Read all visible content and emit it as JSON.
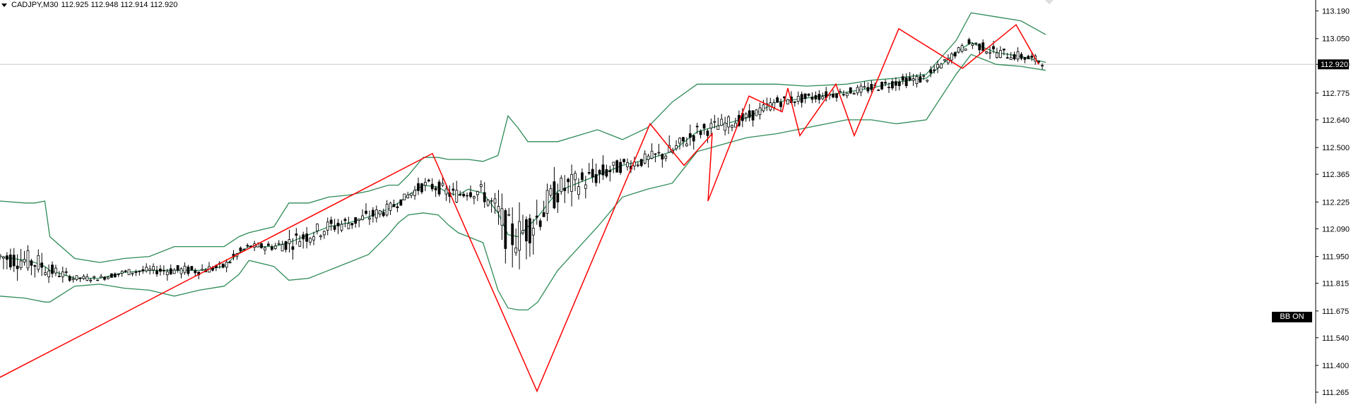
{
  "header": {
    "symbol_tf": "CADJPY,M30",
    "ohlc": "112.925 112.948 112.914 112.920"
  },
  "bb_button": "BB ON",
  "colors": {
    "bb": "#2e8b57",
    "zigzag": "#ff0000",
    "candle": "#000000",
    "price_label_bg": "#000000",
    "axis": "#000000"
  },
  "chart_data": {
    "type": "candlestick",
    "symbol": "CADJPY",
    "timeframe": "M30",
    "ylim": [
      111.24,
      113.22
    ],
    "y_ticks": [
      "113.190",
      "113.050",
      "112.920",
      "112.775",
      "112.640",
      "112.500",
      "112.365",
      "112.225",
      "112.090",
      "111.950",
      "111.815",
      "111.675",
      "111.540",
      "111.400",
      "111.265"
    ],
    "current_price": "112.920",
    "bollinger": {
      "upper": [
        112.23,
        112.22,
        112.22,
        112.23,
        112.05,
        111.94,
        111.92,
        111.94,
        111.95,
        112.0,
        112.0,
        112.0,
        112.05,
        112.07,
        112.1,
        112.22,
        112.22,
        112.25,
        112.26,
        112.28,
        112.31,
        112.31,
        112.36,
        112.45,
        112.45,
        112.44,
        112.44,
        112.44,
        112.43,
        112.46,
        112.66,
        112.6,
        112.53,
        112.53,
        112.53,
        112.59,
        112.54,
        112.6,
        112.73,
        112.82,
        112.82,
        112.82,
        112.81,
        112.82,
        112.84,
        112.85,
        112.87,
        113.04,
        113.18,
        113.16,
        113.14,
        113.07
      ],
      "middle": [
        111.95,
        111.93,
        111.92,
        111.9,
        111.88,
        111.84,
        111.84,
        111.87,
        111.88,
        111.88,
        111.88,
        111.9,
        111.97,
        112.0,
        112.0,
        112.02,
        112.06,
        112.1,
        112.12,
        112.15,
        112.19,
        112.22,
        112.26,
        112.31,
        112.3,
        112.27,
        112.26,
        112.29,
        112.27,
        112.17,
        112.06,
        112.05,
        112.1,
        112.15,
        112.28,
        112.36,
        112.41,
        112.44,
        112.48,
        112.58,
        112.65,
        112.73,
        112.75,
        112.78,
        112.8,
        112.83,
        112.85,
        112.98,
        113.03,
        112.98,
        112.96,
        112.93
      ],
      "lower": [
        111.75,
        111.74,
        111.73,
        111.72,
        111.72,
        111.8,
        111.81,
        111.79,
        111.78,
        111.75,
        111.78,
        111.8,
        111.86,
        111.93,
        111.9,
        111.83,
        111.84,
        111.88,
        111.92,
        111.96,
        112.06,
        112.12,
        112.16,
        112.17,
        112.16,
        112.11,
        112.07,
        112.05,
        112.02,
        111.78,
        111.69,
        111.68,
        111.68,
        111.72,
        111.88,
        112.1,
        112.25,
        112.29,
        112.32,
        112.48,
        112.55,
        112.57,
        112.6,
        112.64,
        112.64,
        112.62,
        112.64,
        112.87,
        112.97,
        112.92,
        112.91,
        112.89
      ],
      "x_index": [
        0,
        50,
        70,
        90,
        100,
        150,
        200,
        250,
        300,
        350,
        400,
        450,
        480,
        500,
        550,
        580,
        620,
        660,
        700,
        740,
        780,
        800,
        820,
        850,
        880,
        900,
        920,
        940,
        970,
        1000,
        1020,
        1040,
        1060,
        1080,
        1120,
        1200,
        1250,
        1300,
        1350,
        1400,
        1500,
        1560,
        1620,
        1700,
        1750,
        1800,
        1860,
        1920,
        1950,
        2000,
        2050,
        2100
      ]
    },
    "zigzag": [
      {
        "i": 0,
        "price": 111.34
      },
      {
        "i": 1,
        "price": 112.47
      },
      {
        "i": 2,
        "price": 111.27
      },
      {
        "i": 3,
        "price": 112.62
      },
      {
        "i": 4,
        "price": 112.41
      },
      {
        "i": 5,
        "price": 112.57
      },
      {
        "i": 6,
        "price": 112.23
      },
      {
        "i": 7,
        "price": 112.76
      },
      {
        "i": 8,
        "price": 112.68
      },
      {
        "i": 9,
        "price": 112.8
      },
      {
        "i": 10,
        "price": 112.56
      },
      {
        "i": 11,
        "price": 112.82
      },
      {
        "i": 12,
        "price": 112.56
      },
      {
        "i": 13,
        "price": 113.1
      },
      {
        "i": 14,
        "price": 112.9
      },
      {
        "i": 15,
        "price": 113.12
      },
      {
        "i": 16,
        "price": 112.92
      }
    ],
    "zigzag_x": [
      0,
      612,
      760,
      920,
      968,
      1008,
      1002,
      1060,
      1107,
      1115,
      1132,
      1183,
      1209,
      1272,
      1362,
      1438,
      1470
    ]
  }
}
